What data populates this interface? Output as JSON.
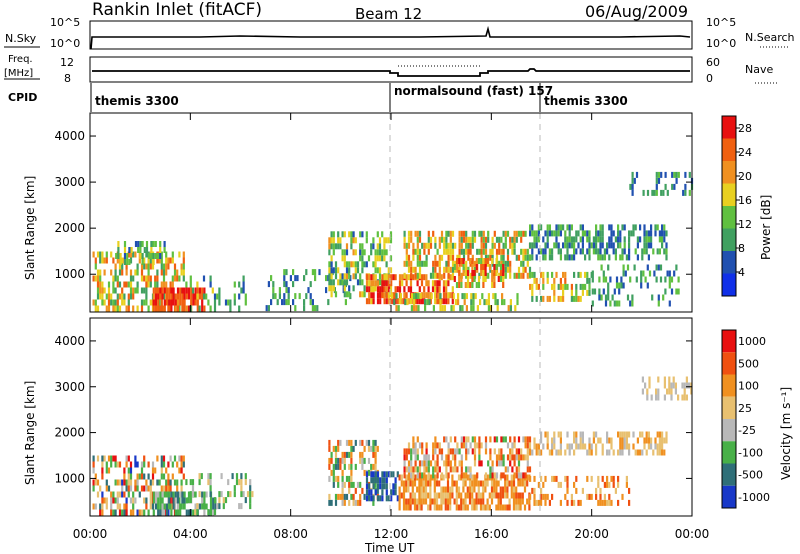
{
  "header": {
    "station": "Rankin Inlet (fitACF)",
    "beam": "Beam 12",
    "date": "06/Aug/2009"
  },
  "panels": {
    "nsky": {
      "label": "N.Sky",
      "ticks": [
        "10^5",
        "10^0"
      ],
      "right_label": "N.Search",
      "right_ticks": [
        "10^5",
        "10^0"
      ]
    },
    "freq": {
      "label_line1": "Freq.",
      "label_line2": "[MHz]",
      "ticks": [
        "12",
        "8"
      ],
      "right_label": "Nave",
      "right_ticks": [
        "60",
        "0"
      ]
    },
    "cpid": {
      "label": "CPID",
      "segments": [
        {
          "name": "themis 3300",
          "start_hour": 0
        },
        {
          "name": "normalsound (fast) 157",
          "start_hour": 12
        },
        {
          "name": "themis 3300",
          "start_hour": 18
        }
      ]
    }
  },
  "chart_data": [
    {
      "type": "heatmap",
      "title": "",
      "xlabel": "Time UT",
      "ylabel": "Slant Range [km]",
      "xlim": [
        0,
        24
      ],
      "ylim": [
        180,
        4500
      ],
      "x_ticks": [
        "00:00",
        "04:00",
        "08:00",
        "12:00",
        "16:00",
        "20:00",
        "00:00"
      ],
      "y_ticks": [
        1000,
        2000,
        3000,
        4000
      ],
      "colorbar": {
        "label": "Power [dB]",
        "range": [
          0,
          30
        ],
        "ticks": [
          4,
          8,
          12,
          16,
          20,
          24,
          28
        ],
        "colors": [
          "#1030e8",
          "#2050b0",
          "#40a060",
          "#60c040",
          "#e8d020",
          "#f09020",
          "#f06010",
          "#e81010"
        ]
      },
      "regions": [
        {
          "t0": 0.1,
          "t1": 3.7,
          "r0": 190,
          "r1": 1400,
          "density": 0.55,
          "v0": 8,
          "v1": 26
        },
        {
          "t0": 1.0,
          "t1": 3.0,
          "r0": 1200,
          "r1": 1700,
          "density": 0.45,
          "v0": 6,
          "v1": 18
        },
        {
          "t0": 2.5,
          "t1": 4.6,
          "r0": 190,
          "r1": 600,
          "density": 0.85,
          "v0": 22,
          "v1": 30
        },
        {
          "t0": 3.8,
          "t1": 6.2,
          "r0": 190,
          "r1": 900,
          "density": 0.25,
          "v0": 6,
          "v1": 16
        },
        {
          "t0": 7.0,
          "t1": 10.5,
          "r0": 200,
          "r1": 1000,
          "density": 0.25,
          "v0": 4,
          "v1": 14
        },
        {
          "t0": 9.5,
          "t1": 12.0,
          "r0": 500,
          "r1": 1900,
          "density": 0.5,
          "v0": 6,
          "v1": 20
        },
        {
          "t0": 11.0,
          "t1": 14.5,
          "r0": 350,
          "r1": 1000,
          "density": 0.75,
          "v0": 16,
          "v1": 30
        },
        {
          "t0": 12.0,
          "t1": 17.0,
          "r0": 200,
          "r1": 500,
          "density": 0.45,
          "v0": 8,
          "v1": 20
        },
        {
          "t0": 12.5,
          "t1": 17.5,
          "r0": 900,
          "r1": 1900,
          "density": 0.6,
          "v0": 8,
          "v1": 26
        },
        {
          "t0": 14.5,
          "t1": 16.5,
          "r0": 700,
          "r1": 1300,
          "density": 0.6,
          "v0": 12,
          "v1": 28
        },
        {
          "t0": 17.5,
          "t1": 23.0,
          "r0": 1300,
          "r1": 2000,
          "density": 0.55,
          "v0": 4,
          "v1": 14
        },
        {
          "t0": 17.5,
          "t1": 20.0,
          "r0": 400,
          "r1": 1000,
          "density": 0.4,
          "v0": 8,
          "v1": 24
        },
        {
          "t0": 20.0,
          "t1": 23.5,
          "r0": 300,
          "r1": 1100,
          "density": 0.25,
          "v0": 4,
          "v1": 14
        },
        {
          "t0": 21.5,
          "t1": 24.0,
          "r0": 2700,
          "r1": 3200,
          "density": 0.3,
          "v0": 4,
          "v1": 12
        }
      ]
    },
    {
      "type": "heatmap",
      "title": "",
      "xlabel": "Time UT",
      "ylabel": "Slant Range [km]",
      "xlim": [
        0,
        24
      ],
      "ylim": [
        180,
        4500
      ],
      "x_ticks": [
        "00:00",
        "04:00",
        "08:00",
        "12:00",
        "16:00",
        "20:00",
        "00:00"
      ],
      "y_ticks": [
        1000,
        2000,
        3000,
        4000
      ],
      "colorbar": {
        "label": "Velocity [m s⁻¹]",
        "ticks": [
          "1000",
          "500",
          "100",
          "25",
          "-25",
          "-100",
          "-500",
          "-1000"
        ],
        "colors": [
          "#1838c8",
          "#2f6f78",
          "#48b048",
          "#b8b8b8",
          "#e8c070",
          "#f09020",
          "#f05010",
          "#e81010"
        ]
      },
      "regions": [
        {
          "t0": 0.1,
          "t1": 3.7,
          "r0": 190,
          "r1": 1400,
          "density": 0.5,
          "v0": 0,
          "v1": 7
        },
        {
          "t0": 2.5,
          "t1": 5.0,
          "r0": 190,
          "r1": 600,
          "density": 0.6,
          "v0": 1,
          "v1": 3
        },
        {
          "t0": 3.8,
          "t1": 6.5,
          "r0": 200,
          "r1": 1000,
          "density": 0.3,
          "v0": 1,
          "v1": 4
        },
        {
          "t0": 9.5,
          "t1": 11.5,
          "r0": 400,
          "r1": 1800,
          "density": 0.45,
          "v0": 1,
          "v1": 6
        },
        {
          "t0": 11.0,
          "t1": 12.3,
          "r0": 500,
          "r1": 1100,
          "density": 0.7,
          "v0": 0,
          "v1": 1
        },
        {
          "t0": 12.3,
          "t1": 17.5,
          "r0": 300,
          "r1": 1000,
          "density": 0.7,
          "v0": 4,
          "v1": 6
        },
        {
          "t0": 12.5,
          "t1": 17.5,
          "r0": 1000,
          "r1": 1800,
          "density": 0.55,
          "v0": 2,
          "v1": 7
        },
        {
          "t0": 17.5,
          "t1": 23.0,
          "r0": 1500,
          "r1": 2000,
          "density": 0.55,
          "v0": 3,
          "v1": 5
        },
        {
          "t0": 17.5,
          "t1": 21.5,
          "r0": 400,
          "r1": 1000,
          "density": 0.35,
          "v0": 4,
          "v1": 6
        },
        {
          "t0": 22.0,
          "t1": 24.0,
          "r0": 2700,
          "r1": 3200,
          "density": 0.3,
          "v0": 3,
          "v1": 4
        }
      ]
    }
  ]
}
